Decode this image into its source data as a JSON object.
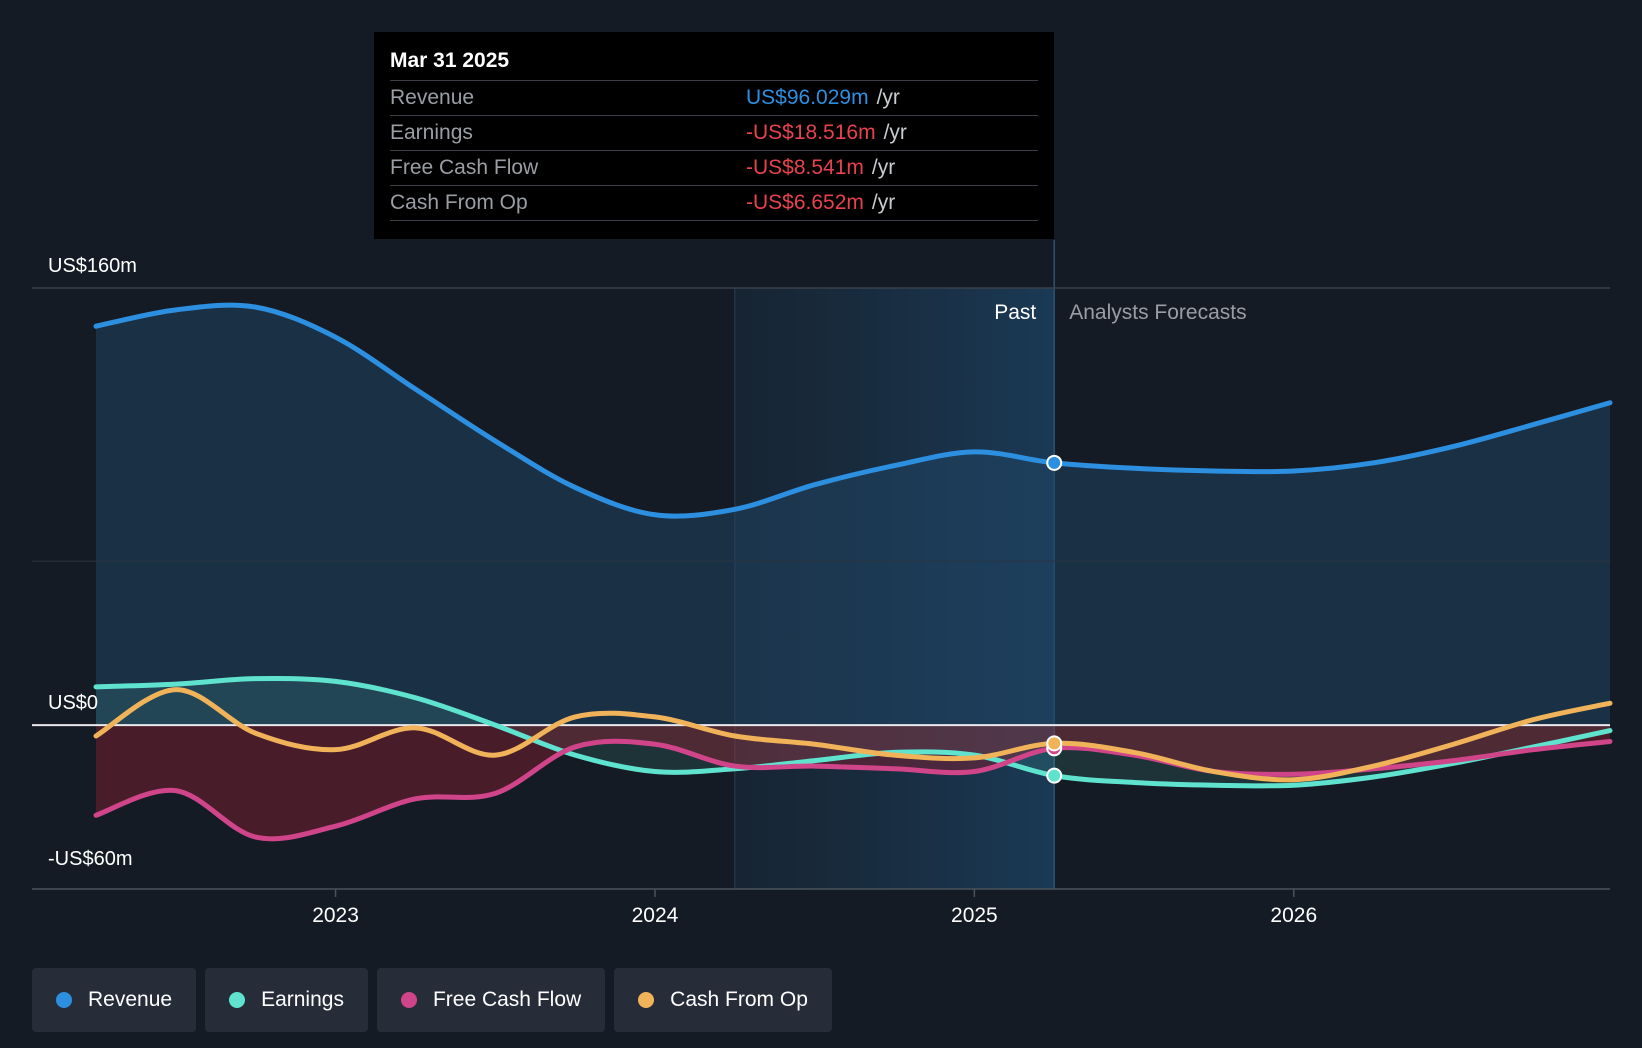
{
  "chart_data": {
    "type": "area",
    "title": "",
    "y_axis": {
      "min": -60,
      "max": 160,
      "tick_labels": [
        "US$160m",
        "US$0",
        "-US$60m"
      ],
      "unit": "US$m"
    },
    "x_axis": {
      "tick_labels": [
        "2023",
        "2024",
        "2025",
        "2026"
      ],
      "range": [
        2022.25,
        2026.99
      ]
    },
    "regions": {
      "past_label": "Past",
      "forecast_label": "Analysts Forecasts",
      "split_x": 2025.25,
      "highlight_start_x": 2024.25
    },
    "series": [
      {
        "name": "Revenue",
        "color": "#2d8fe0",
        "x": [
          2022.25,
          2022.5,
          2022.75,
          2023.0,
          2023.25,
          2023.5,
          2023.75,
          2024.0,
          2024.25,
          2024.5,
          2024.75,
          2025.0,
          2025.25,
          2025.5,
          2025.75,
          2026.0,
          2026.25,
          2026.5,
          2026.75,
          2026.99
        ],
        "values": [
          146,
          152,
          153,
          142,
          123,
          104,
          87,
          77,
          79,
          88,
          95,
          100,
          96,
          94,
          93,
          93,
          96,
          102,
          110,
          118
        ]
      },
      {
        "name": "Earnings",
        "color": "#5fe3cf",
        "x": [
          2022.25,
          2022.5,
          2022.75,
          2023.0,
          2023.25,
          2023.5,
          2023.75,
          2024.0,
          2024.25,
          2024.5,
          2024.75,
          2025.0,
          2025.25,
          2025.5,
          2025.75,
          2026.0,
          2026.25,
          2026.5,
          2026.75,
          2026.99
        ],
        "values": [
          14,
          15,
          17,
          16,
          10,
          0,
          -11,
          -17,
          -16,
          -13,
          -10,
          -11,
          -18.5,
          -21,
          -22,
          -22,
          -19,
          -14,
          -8,
          -2
        ]
      },
      {
        "name": "Free Cash Flow",
        "color": "#d0458a",
        "x": [
          2022.25,
          2022.5,
          2022.75,
          2023.0,
          2023.25,
          2023.5,
          2023.75,
          2024.0,
          2024.25,
          2024.5,
          2024.75,
          2025.0,
          2025.25,
          2025.5,
          2025.75,
          2026.0,
          2026.25,
          2026.5,
          2026.75,
          2026.99
        ],
        "values": [
          -33,
          -24,
          -41,
          -37,
          -27,
          -25,
          -8,
          -7,
          -15,
          -15,
          -16,
          -17,
          -8.5,
          -11,
          -17,
          -18,
          -16,
          -13,
          -9,
          -6
        ]
      },
      {
        "name": "Cash From Op",
        "color": "#f0b35a",
        "x": [
          2022.25,
          2022.5,
          2022.75,
          2023.0,
          2023.25,
          2023.5,
          2023.75,
          2024.0,
          2024.25,
          2024.5,
          2024.75,
          2025.0,
          2025.25,
          2025.5,
          2025.75,
          2026.0,
          2026.25,
          2026.5,
          2026.75,
          2026.99
        ],
        "values": [
          -4,
          13,
          -3,
          -9,
          -1,
          -11,
          3,
          3,
          -4,
          -7,
          -11,
          -12,
          -6.7,
          -10,
          -17,
          -20,
          -15,
          -7,
          2,
          8
        ]
      }
    ]
  },
  "tooltip": {
    "date": "Mar 31 2025",
    "unit": "/yr",
    "rows": [
      {
        "label": "Revenue",
        "value": "US$96.029m",
        "color": "#2d8fe0"
      },
      {
        "label": "Earnings",
        "value": "-US$18.516m",
        "color": "#e8424e"
      },
      {
        "label": "Free Cash Flow",
        "value": "-US$8.541m",
        "color": "#e8424e"
      },
      {
        "label": "Cash From Op",
        "value": "-US$6.652m",
        "color": "#e8424e"
      }
    ]
  },
  "legend": [
    {
      "label": "Revenue",
      "color": "#2d8fe0"
    },
    {
      "label": "Earnings",
      "color": "#5fe3cf"
    },
    {
      "label": "Free Cash Flow",
      "color": "#d0458a"
    },
    {
      "label": "Cash From Op",
      "color": "#f0b35a"
    }
  ]
}
